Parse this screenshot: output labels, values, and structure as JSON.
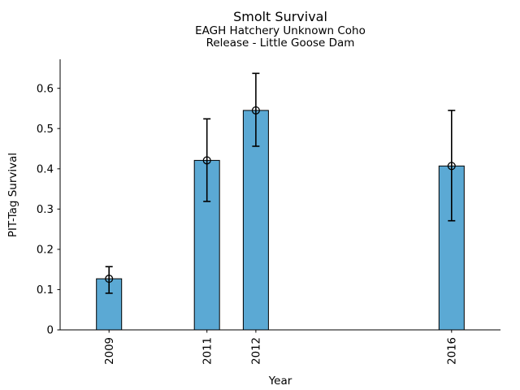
{
  "chart_data": {
    "type": "bar",
    "title": "Smolt Survival",
    "subtitle_lines": [
      "EAGH Hatchery Unknown Coho",
      "Release - Little Goose Dam"
    ],
    "xlabel": "Year",
    "ylabel": "PIT-Tag Survival",
    "categories": [
      "2009",
      "2011",
      "2012",
      "2016"
    ],
    "x": [
      2009,
      2011,
      2012,
      2016
    ],
    "values": [
      0.127,
      0.421,
      0.545,
      0.407
    ],
    "error_low": [
      0.091,
      0.319,
      0.456,
      0.271
    ],
    "error_high": [
      0.157,
      0.524,
      0.637,
      0.545
    ],
    "xlim": [
      2008,
      2017
    ],
    "ylim": [
      0,
      0.672
    ],
    "yticks": [
      0,
      0.1,
      0.2,
      0.3,
      0.4,
      0.5,
      0.6
    ],
    "ytick_labels": [
      "0",
      "0.1",
      "0.2",
      "0.3",
      "0.4",
      "0.5",
      "0.6"
    ],
    "grid": false,
    "legend": null,
    "marker": "open-circle",
    "colors": {
      "bar_fill": "#5BA9D4",
      "bar_edge": "#000000",
      "error": "#000000",
      "spine": "#000000",
      "text": "#000000"
    }
  }
}
